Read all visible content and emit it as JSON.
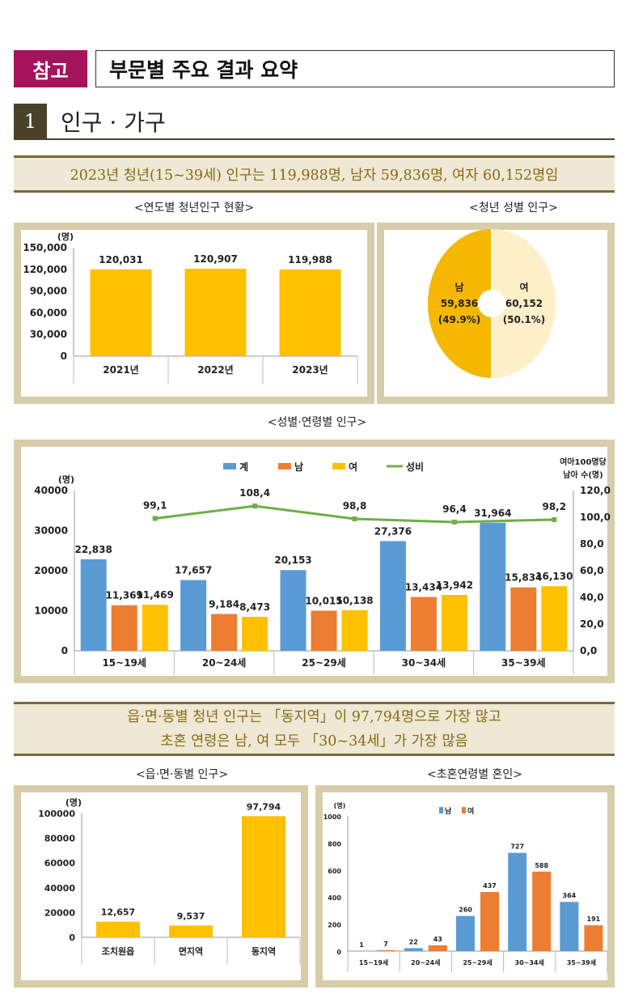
{
  "header": {
    "badge": "참고",
    "title": "부문별 주요 결과 요약"
  },
  "section": {
    "number": "1",
    "title": "인구 · 가구"
  },
  "banner1": "2023년 청년(15~39세) 인구는 119,988명, 남자 59,836명, 여자 60,152명임",
  "banner2": {
    "line1": "읍·면·동별 청년 인구는 「동지역」이 97,794명으로 가장 많고",
    "line2": "초혼 연령은 남, 여 모두 「30~34세」가 가장 많음"
  },
  "colors": {
    "yellow": "#FFC000",
    "blue": "#5B9BD5",
    "orange": "#ED7D31",
    "green": "#70AD47",
    "pie_male": "#F5B700",
    "pie_female": "#FDEFC8"
  },
  "chart_data": [
    {
      "type": "bar",
      "title": "<연도별 청년인구 현황>",
      "ylabel": "(명)",
      "ylim": [
        0,
        150000
      ],
      "yticks": [
        "0",
        "30,000",
        "60,000",
        "90,000",
        "120,000",
        "150,000"
      ],
      "categories": [
        "2021년",
        "2022년",
        "2023년"
      ],
      "values": [
        120031,
        120907,
        119988
      ],
      "value_labels": [
        "120,031",
        "120,907",
        "119,988"
      ]
    },
    {
      "type": "pie",
      "title": "<청년 성별 인구>",
      "slices": [
        {
          "label": "남",
          "value": 59836,
          "value_label": "59,836",
          "pct": "(49.9%)"
        },
        {
          "label": "여",
          "value": 60152,
          "value_label": "60,152",
          "pct": "(50.1%)"
        }
      ]
    },
    {
      "type": "bar",
      "title": "<성별·연령별 인구>",
      "ylabel": "(명)",
      "y2label_line1": "여아100명당",
      "y2label_line2": "남아 수(명)",
      "ylim": [
        0,
        40000
      ],
      "yticks": [
        "0",
        "10000",
        "20000",
        "30000",
        "40000"
      ],
      "y2lim": [
        0,
        120
      ],
      "y2ticks": [
        "0,0",
        "20,0",
        "40,0",
        "60,0",
        "80,0",
        "100,0",
        "120,0"
      ],
      "categories": [
        "15~19세",
        "20~24세",
        "25~29세",
        "30~34세",
        "35~39세"
      ],
      "legend": [
        "계",
        "남",
        "여",
        "성비"
      ],
      "series": [
        {
          "name": "계",
          "values": [
            22838,
            17657,
            20153,
            27376,
            31964
          ],
          "labels": [
            "22,838",
            "17,657",
            "20,153",
            "27,376",
            "31,964"
          ]
        },
        {
          "name": "남",
          "values": [
            11369,
            9184,
            10015,
            13434,
            15834
          ],
          "labels": [
            "11,369",
            "9,184",
            "10,015",
            "13,434",
            "15,834"
          ]
        },
        {
          "name": "여",
          "values": [
            11469,
            8473,
            10138,
            13942,
            16130
          ],
          "labels": [
            "11,469",
            "8,473",
            "10,138",
            "13,942",
            "16,130"
          ]
        }
      ],
      "line": {
        "name": "성비",
        "values": [
          99.1,
          108.4,
          98.8,
          96.4,
          98.2
        ],
        "labels": [
          "99,1",
          "108,4",
          "98,8",
          "96,4",
          "98,2"
        ]
      }
    },
    {
      "type": "bar",
      "title": "<읍·면·동별 인구>",
      "ylabel": "(명)",
      "ylim": [
        0,
        100000
      ],
      "yticks": [
        "0",
        "20000",
        "40000",
        "60000",
        "80000",
        "100000"
      ],
      "categories": [
        "조치원읍",
        "면지역",
        "동지역"
      ],
      "values": [
        12657,
        9537,
        97794
      ],
      "value_labels": [
        "12,657",
        "9,537",
        "97,794"
      ]
    },
    {
      "type": "bar",
      "title": "<초혼연령별 혼인>",
      "ylabel": "(명)",
      "ylim": [
        0,
        1000
      ],
      "yticks": [
        "0",
        "200",
        "400",
        "600",
        "800",
        "1000"
      ],
      "categories": [
        "15~19세",
        "20~24세",
        "25~29세",
        "30~34세",
        "35~39세"
      ],
      "legend": [
        "남",
        "여"
      ],
      "series": [
        {
          "name": "남",
          "values": [
            1,
            22,
            260,
            727,
            364
          ],
          "labels": [
            "1",
            "22",
            "260",
            "727",
            "364"
          ]
        },
        {
          "name": "여",
          "values": [
            7,
            43,
            437,
            588,
            191
          ],
          "labels": [
            "7",
            "43",
            "437",
            "588",
            "191"
          ]
        }
      ]
    }
  ]
}
